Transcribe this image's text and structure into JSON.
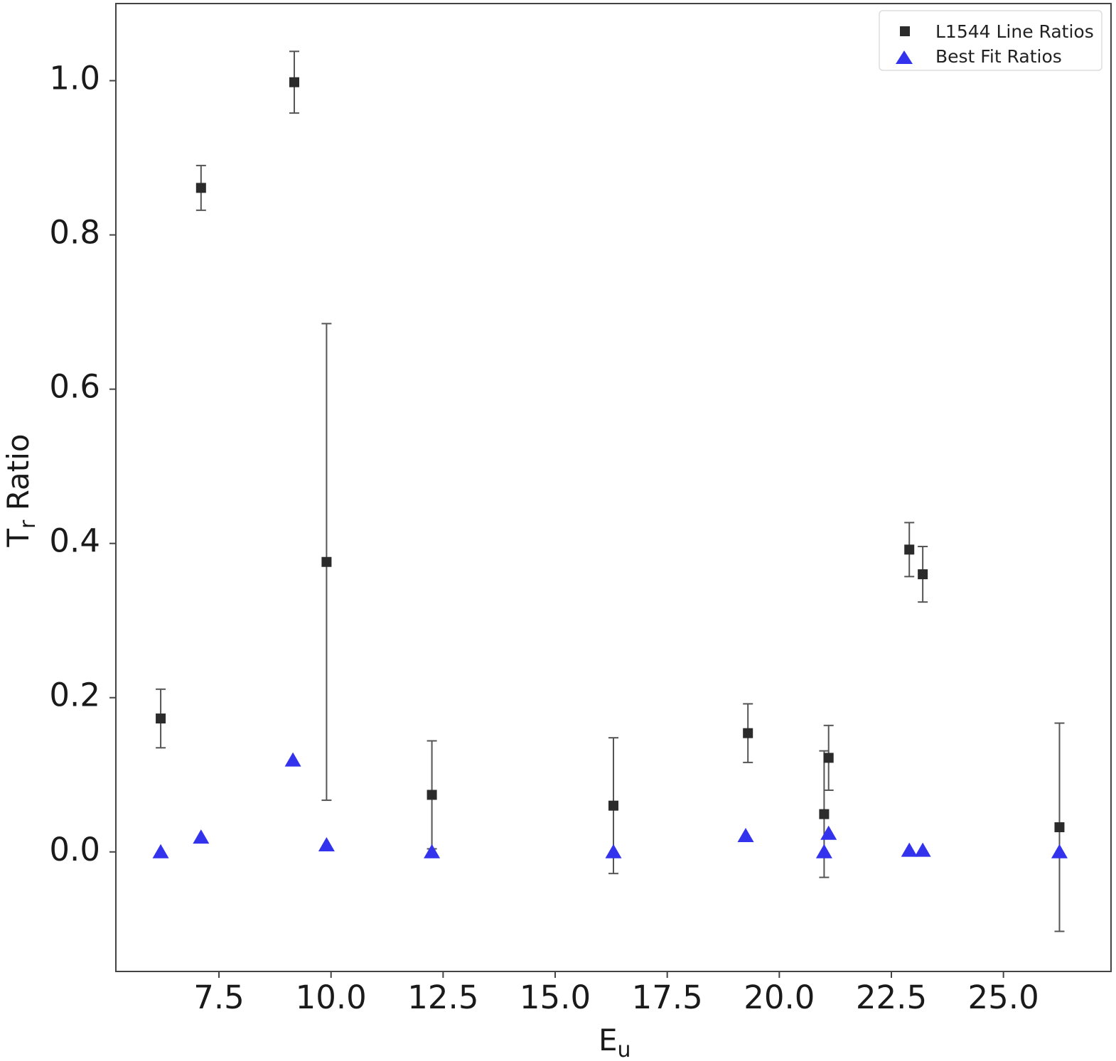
{
  "chart_data": {
    "type": "scatter",
    "xlabel": "E",
    "xlabel_sub": "u",
    "ylabel": "T",
    "ylabel_sub": "r",
    "ylabel_rest": " Ratio",
    "xlim": [
      5.2,
      27.4
    ],
    "ylim": [
      -0.155,
      1.1
    ],
    "xticks": [
      7.5,
      10.0,
      12.5,
      15.0,
      17.5,
      20.0,
      22.5,
      25.0
    ],
    "xtick_labels": [
      "7.5",
      "10.0",
      "12.5",
      "15.0",
      "17.5",
      "20.0",
      "22.5",
      "25.0"
    ],
    "yticks": [
      0.0,
      0.2,
      0.4,
      0.6,
      0.8,
      1.0
    ],
    "ytick_labels": [
      "0.0",
      "0.2",
      "0.4",
      "0.6",
      "0.8",
      "1.0"
    ],
    "grid": false,
    "legend_position": "top-right",
    "series": [
      {
        "name": "L1544 Line Ratios",
        "marker": "square",
        "color": "#2b2b2b",
        "points": [
          {
            "x": 6.2,
            "y": 0.173,
            "err": 0.038
          },
          {
            "x": 7.1,
            "y": 0.861,
            "err": 0.029
          },
          {
            "x": 9.18,
            "y": 0.998,
            "err": 0.04
          },
          {
            "x": 9.9,
            "y": 0.376,
            "err": 0.309
          },
          {
            "x": 12.25,
            "y": 0.074,
            "err": 0.07
          },
          {
            "x": 16.3,
            "y": 0.06,
            "err": 0.088
          },
          {
            "x": 19.3,
            "y": 0.154,
            "err": 0.038
          },
          {
            "x": 21.0,
            "y": 0.049,
            "err": 0.082
          },
          {
            "x": 21.1,
            "y": 0.122,
            "err": 0.042
          },
          {
            "x": 22.9,
            "y": 0.392,
            "err": 0.035
          },
          {
            "x": 23.2,
            "y": 0.36,
            "err": 0.036
          },
          {
            "x": 26.25,
            "y": 0.032,
            "err": 0.135
          }
        ]
      },
      {
        "name": "Best Fit Ratios",
        "marker": "triangle",
        "color": "#3333ee",
        "points": [
          {
            "x": 6.2,
            "y": 0.0
          },
          {
            "x": 7.1,
            "y": 0.019
          },
          {
            "x": 9.15,
            "y": 0.119
          },
          {
            "x": 9.9,
            "y": 0.009
          },
          {
            "x": 12.25,
            "y": 0.0
          },
          {
            "x": 16.3,
            "y": 0.0
          },
          {
            "x": 19.25,
            "y": 0.021
          },
          {
            "x": 21.0,
            "y": 0.0
          },
          {
            "x": 21.1,
            "y": 0.024
          },
          {
            "x": 22.9,
            "y": 0.002
          },
          {
            "x": 23.2,
            "y": 0.002
          },
          {
            "x": 26.25,
            "y": 0.0
          }
        ]
      }
    ]
  }
}
